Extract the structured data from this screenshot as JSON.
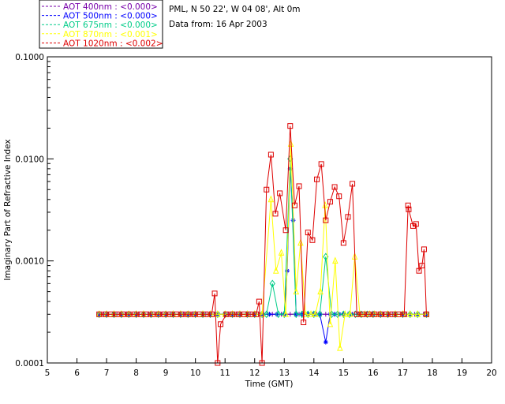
{
  "header": {
    "site": "PML, N 50 22', W 04 08', Alt 0m",
    "date": "Data from: 16 Apr 2003"
  },
  "chart_data": {
    "type": "line",
    "title": "",
    "xlabel": "Time (GMT)",
    "ylabel": "Imaginary Part of Refractive Index",
    "xlim": [
      5,
      20
    ],
    "ylim": [
      0.0001,
      0.1
    ],
    "y_scale": "log",
    "x_ticks": [
      "5",
      "6",
      "7",
      "8",
      "9",
      "10",
      "11",
      "12",
      "13",
      "14",
      "15",
      "16",
      "17",
      "18",
      "19",
      "20"
    ],
    "y_ticks": [
      {
        "value": 0.1,
        "label": "0.1000"
      },
      {
        "value": 0.01,
        "label": "0.0100"
      },
      {
        "value": 0.001,
        "label": "0.0010"
      },
      {
        "value": 0.0001,
        "label": "0.0001"
      }
    ],
    "grid": false,
    "legend_position": "top-left, outside plot",
    "series": [
      {
        "name": "AOT  400nm : <0.000>",
        "color": "#7700aa",
        "marker": "plus",
        "x": [
          6.75,
          6.9,
          7.05,
          7.2,
          7.35,
          7.5,
          7.65,
          7.8,
          7.95,
          8.1,
          8.25,
          8.4,
          8.55,
          8.7,
          8.85,
          9.0,
          9.15,
          9.3,
          9.45,
          9.6,
          9.75,
          9.9,
          10.05,
          10.2,
          10.35,
          10.5,
          10.65,
          10.8,
          10.95,
          11.1,
          11.25,
          11.4,
          11.55,
          11.7,
          11.85,
          12.0,
          12.15,
          12.3,
          12.45,
          12.6,
          12.75,
          12.9,
          13.05,
          13.2,
          13.35,
          13.5,
          13.65,
          13.8,
          13.95,
          14.1,
          14.25,
          14.4,
          14.55,
          14.7,
          14.85,
          15.0,
          15.15,
          15.3,
          15.45,
          15.6,
          15.75,
          15.9,
          16.05,
          16.2,
          16.35,
          16.5,
          16.65,
          16.8,
          16.95,
          17.1,
          17.25,
          17.4,
          17.55,
          17.7,
          17.8
        ],
        "y": [
          0.0003,
          0.0003,
          0.0003,
          0.0003,
          0.0003,
          0.0003,
          0.0003,
          0.0003,
          0.0003,
          0.0003,
          0.0003,
          0.0003,
          0.0003,
          0.0003,
          0.0003,
          0.0003,
          0.0003,
          0.0003,
          0.0003,
          0.0003,
          0.0003,
          0.0003,
          0.0003,
          0.0003,
          0.0003,
          0.0003,
          0.0003,
          0.0003,
          0.0003,
          0.0003,
          0.0003,
          0.0003,
          0.0003,
          0.0003,
          0.0003,
          0.0003,
          0.0003,
          0.0003,
          0.0003,
          0.0003,
          0.0003,
          0.0003,
          0.0003,
          0.0003,
          0.0003,
          0.0003,
          0.0003,
          0.0003,
          0.0003,
          0.0003,
          0.0003,
          0.0003,
          0.0003,
          0.0003,
          0.0003,
          0.0003,
          0.0003,
          0.0003,
          0.0003,
          0.0003,
          0.0003,
          0.0003,
          0.0003,
          0.0003,
          0.0003,
          0.0003,
          0.0003,
          0.0003,
          0.0003,
          0.0003,
          0.0003,
          0.0003,
          0.0003,
          0.0003,
          0.0003
        ]
      },
      {
        "name": "AOT  500nm : <0.000>",
        "color": "#0000ff",
        "marker": "asterisk",
        "x": [
          6.75,
          7.0,
          7.25,
          7.5,
          7.75,
          8.0,
          8.25,
          8.5,
          8.75,
          9.0,
          9.25,
          9.5,
          9.75,
          10.0,
          10.25,
          10.5,
          10.75,
          11.0,
          11.25,
          11.5,
          11.75,
          12.0,
          12.25,
          12.5,
          12.75,
          13.0,
          13.1,
          13.2,
          13.3,
          13.4,
          13.6,
          13.8,
          14.0,
          14.2,
          14.4,
          14.55,
          14.7,
          14.85,
          15.0,
          15.25,
          15.5,
          15.75,
          16.0,
          16.25,
          16.5,
          16.75,
          17.0,
          17.25,
          17.5,
          17.8
        ],
        "y": [
          0.0003,
          0.0003,
          0.0003,
          0.0003,
          0.0003,
          0.0003,
          0.0003,
          0.0003,
          0.0003,
          0.0003,
          0.0003,
          0.0003,
          0.0003,
          0.0003,
          0.0003,
          0.0003,
          0.0003,
          0.0003,
          0.0003,
          0.0003,
          0.0003,
          0.0003,
          0.0003,
          0.0003,
          0.0003,
          0.0003,
          0.0008,
          0.008,
          0.0025,
          0.0003,
          0.0003,
          0.0003,
          0.0003,
          0.0003,
          0.00016,
          0.0003,
          0.0003,
          0.0003,
          0.0003,
          0.0003,
          0.0003,
          0.0003,
          0.0003,
          0.0003,
          0.0003,
          0.0003,
          0.0003,
          0.0003,
          0.0003,
          0.0003
        ]
      },
      {
        "name": "AOT  675nm : <0.000>",
        "color": "#00cc88",
        "marker": "diamond",
        "x": [
          6.75,
          7.0,
          7.25,
          7.5,
          7.75,
          8.0,
          8.25,
          8.5,
          8.75,
          9.0,
          9.25,
          9.5,
          9.75,
          10.0,
          10.25,
          10.5,
          10.75,
          11.0,
          11.25,
          11.5,
          11.75,
          12.0,
          12.25,
          12.4,
          12.6,
          12.8,
          13.0,
          13.2,
          13.4,
          13.6,
          13.8,
          14.0,
          14.2,
          14.4,
          14.6,
          14.8,
          15.0,
          15.2,
          15.4,
          15.6,
          15.8,
          16.0,
          16.25,
          16.5,
          16.75,
          17.0,
          17.25,
          17.5,
          17.8
        ],
        "y": [
          0.0003,
          0.0003,
          0.0003,
          0.0003,
          0.0003,
          0.0003,
          0.0003,
          0.0003,
          0.0003,
          0.0003,
          0.0003,
          0.0003,
          0.0003,
          0.0003,
          0.0003,
          0.0003,
          0.0003,
          0.0003,
          0.0003,
          0.0003,
          0.0003,
          0.0003,
          0.0003,
          0.0003,
          0.0006,
          0.0003,
          0.0003,
          0.01,
          0.0003,
          0.0003,
          0.0003,
          0.0003,
          0.0003,
          0.0011,
          0.0003,
          0.0003,
          0.0003,
          0.0003,
          0.0003,
          0.0003,
          0.0003,
          0.0003,
          0.0003,
          0.0003,
          0.0003,
          0.0003,
          0.0003,
          0.0003,
          0.0003
        ]
      },
      {
        "name": "AOT  870nm : <0.001>",
        "color": "#ffff00",
        "marker": "triangle",
        "x": [
          6.75,
          7.0,
          7.25,
          7.5,
          7.75,
          8.0,
          8.25,
          8.5,
          8.75,
          9.0,
          9.25,
          9.5,
          9.75,
          10.0,
          10.25,
          10.5,
          10.75,
          11.0,
          11.25,
          11.5,
          11.75,
          12.0,
          12.25,
          12.55,
          12.72,
          12.9,
          13.05,
          13.22,
          13.4,
          13.55,
          13.72,
          13.9,
          14.05,
          14.22,
          14.38,
          14.55,
          14.72,
          14.88,
          15.05,
          15.22,
          15.38,
          15.55,
          15.72,
          15.88,
          16.05,
          16.25,
          16.5,
          16.75,
          17.0,
          17.25,
          17.5,
          17.8
        ],
        "y": [
          0.0003,
          0.0003,
          0.0003,
          0.0003,
          0.0003,
          0.0003,
          0.0003,
          0.0003,
          0.0003,
          0.0003,
          0.0003,
          0.0003,
          0.0003,
          0.0003,
          0.0003,
          0.0003,
          0.0003,
          0.0003,
          0.0003,
          0.0003,
          0.0003,
          0.0003,
          0.0003,
          0.004,
          0.0008,
          0.0012,
          0.0003,
          0.014,
          0.0005,
          0.0015,
          0.0003,
          0.0003,
          0.0003,
          0.0005,
          0.0035,
          0.00024,
          0.001,
          0.00014,
          0.0003,
          0.0003,
          0.0011,
          0.0003,
          0.0003,
          0.0003,
          0.0003,
          0.0003,
          0.0003,
          0.0003,
          0.0003,
          0.0003,
          0.0003,
          0.0003
        ]
      },
      {
        "name": "AOT 1020nm : <0.002>",
        "color": "#dd0000",
        "marker": "square",
        "x": [
          6.75,
          6.95,
          7.15,
          7.35,
          7.55,
          7.75,
          7.95,
          8.15,
          8.35,
          8.55,
          8.75,
          8.95,
          9.15,
          9.35,
          9.55,
          9.75,
          9.95,
          10.15,
          10.35,
          10.55,
          10.65,
          10.75,
          10.85,
          11.05,
          11.25,
          11.45,
          11.65,
          11.85,
          12.05,
          12.15,
          12.25,
          12.4,
          12.55,
          12.7,
          12.85,
          13.05,
          13.2,
          13.35,
          13.5,
          13.65,
          13.8,
          13.95,
          14.1,
          14.25,
          14.4,
          14.55,
          14.7,
          14.85,
          15.0,
          15.15,
          15.3,
          15.45,
          15.65,
          15.85,
          16.05,
          16.25,
          16.45,
          16.65,
          16.85,
          17.05,
          17.18,
          17.2,
          17.35,
          17.45,
          17.55,
          17.65,
          17.72,
          17.8
        ],
        "y": [
          0.0003,
          0.0003,
          0.0003,
          0.0003,
          0.0003,
          0.0003,
          0.0003,
          0.0003,
          0.0003,
          0.0003,
          0.0003,
          0.0003,
          0.0003,
          0.0003,
          0.0003,
          0.0003,
          0.0003,
          0.0003,
          0.0003,
          0.0003,
          0.00048,
          0.0001,
          0.00024,
          0.0003,
          0.0003,
          0.0003,
          0.0003,
          0.0003,
          0.0003,
          0.0004,
          0.0001,
          0.005,
          0.011,
          0.0029,
          0.0046,
          0.002,
          0.021,
          0.0035,
          0.0054,
          0.00025,
          0.0019,
          0.0016,
          0.0063,
          0.0089,
          0.0025,
          0.0038,
          0.0053,
          0.0043,
          0.0015,
          0.0027,
          0.0057,
          0.0003,
          0.0003,
          0.0003,
          0.0003,
          0.0003,
          0.0003,
          0.0003,
          0.0003,
          0.0003,
          0.0035,
          0.0032,
          0.0022,
          0.0023,
          0.0008,
          0.0009,
          0.0013,
          0.0003
        ]
      }
    ]
  }
}
